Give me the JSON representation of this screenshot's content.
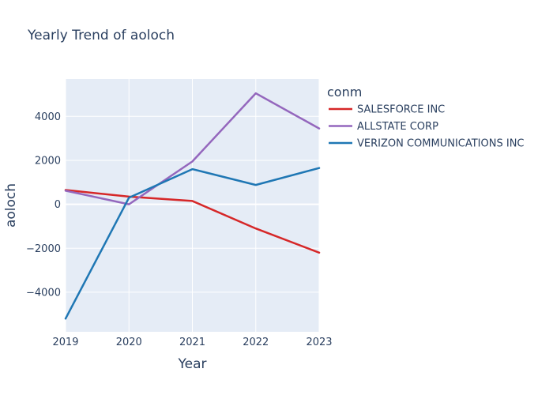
{
  "chart_data": {
    "type": "line",
    "title": "Yearly Trend of aoloch",
    "xlabel": "Year",
    "ylabel": "aoloch",
    "x": [
      2019,
      2020,
      2021,
      2022,
      2023
    ],
    "xlim": [
      2019,
      2023
    ],
    "ylim": [
      -5800,
      5700
    ],
    "yticks": [
      {
        "value": 4000,
        "label": "4000"
      },
      {
        "value": 2000,
        "label": "2000"
      },
      {
        "value": 0,
        "label": "0"
      },
      {
        "value": -2000,
        "label": "−2000"
      },
      {
        "value": -4000,
        "label": "−4000"
      }
    ],
    "xticks": [
      {
        "value": 2019,
        "label": "2019"
      },
      {
        "value": 2020,
        "label": "2020"
      },
      {
        "value": 2021,
        "label": "2021"
      },
      {
        "value": 2022,
        "label": "2022"
      },
      {
        "value": 2023,
        "label": "2023"
      }
    ],
    "grid": true,
    "legend_title": "conm",
    "legend_position": "top-right",
    "series": [
      {
        "name": "SALESFORCE INC",
        "color": "#d62728",
        "values": [
          650,
          350,
          150,
          -1100,
          -2200
        ]
      },
      {
        "name": "ALLSTATE CORP",
        "color": "#9467bd",
        "values": [
          620,
          0,
          1950,
          5050,
          3450
        ]
      },
      {
        "name": "VERIZON COMMUNICATIONS INC",
        "color": "#1f77b4",
        "values": [
          -5200,
          300,
          1600,
          880,
          1650
        ]
      }
    ]
  }
}
